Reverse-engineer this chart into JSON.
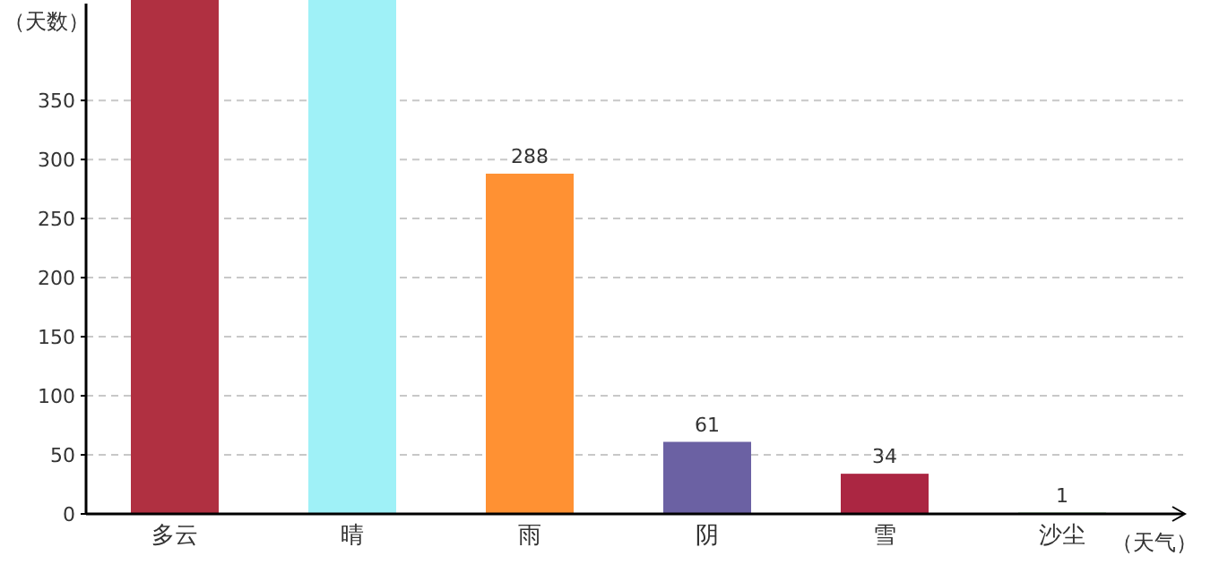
{
  "chart_data": {
    "type": "bar",
    "xlabel": "（天气）",
    "ylabel": "（天数）",
    "categories": [
      "多云",
      "晴",
      "雨",
      "阴",
      "雪",
      "沙尘"
    ],
    "values": [
      435,
      435,
      288,
      61,
      34,
      1
    ],
    "colors": [
      "#b03041",
      "#9ff1f7",
      "#ff9133",
      "#6b61a3",
      "#ab2642",
      "#4cae4c"
    ],
    "value_labels": [
      null,
      null,
      "288",
      "61",
      "34",
      "1"
    ],
    "ylim": [
      0,
      435
    ],
    "yticks": [
      0,
      50,
      100,
      150,
      200,
      250,
      300,
      350
    ],
    "grid": "y"
  }
}
